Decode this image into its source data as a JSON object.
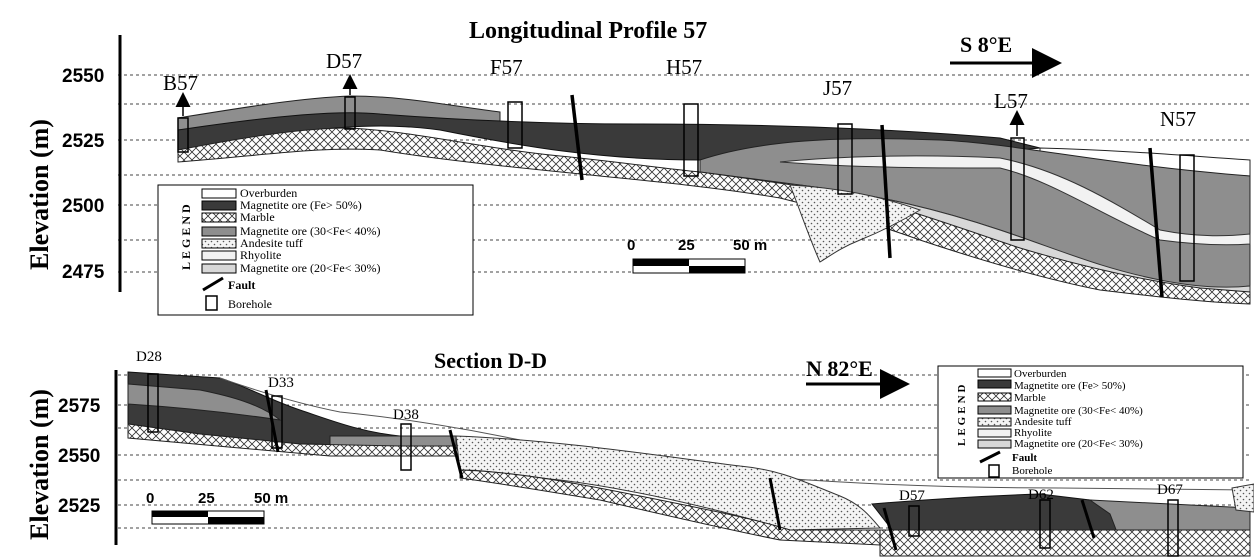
{
  "top": {
    "title": "Longitudinal Profile 57",
    "ylabel": "Elevation (m)",
    "yticks": [
      "2550",
      "2525",
      "2500",
      "2475"
    ],
    "direction": "S 8°E",
    "boreholes": [
      "B57",
      "D57",
      "F57",
      "H57",
      "J57",
      "L57",
      "N57"
    ],
    "scale": {
      "start": "0",
      "mid": "25",
      "end": "50 m"
    }
  },
  "bottom": {
    "title": "Section D-D",
    "ylabel": "Elevation (m)",
    "yticks": [
      "2575",
      "2550",
      "2525"
    ],
    "direction": "N 82°E",
    "boreholes": [
      "D28",
      "D33",
      "D38",
      "D57",
      "D62",
      "D67"
    ],
    "scale": {
      "start": "0",
      "mid": "25",
      "end": "50 m"
    }
  },
  "legend": {
    "heading": "LEGEND",
    "items": [
      "Overburden",
      "Magnetite ore  (Fe> 50%)",
      "Marble",
      "Magnetite ore (30<Fe< 40%)",
      "Andesite tuff",
      "Rhyolite",
      "Magnetite ore  (20<Fe< 30%)",
      "Fault",
      "Borehole"
    ]
  },
  "colors": {
    "overburden": "#ffffff",
    "ore_high": "#3a3a3a",
    "ore_mid": "#8e8e8e",
    "ore_low": "#d8d8d8",
    "rhyolite": "#f2f2f2"
  },
  "icons": [
    "crosshatch-pattern",
    "dot-pattern",
    "arrow-right-icon",
    "arrow-up-icon"
  ]
}
